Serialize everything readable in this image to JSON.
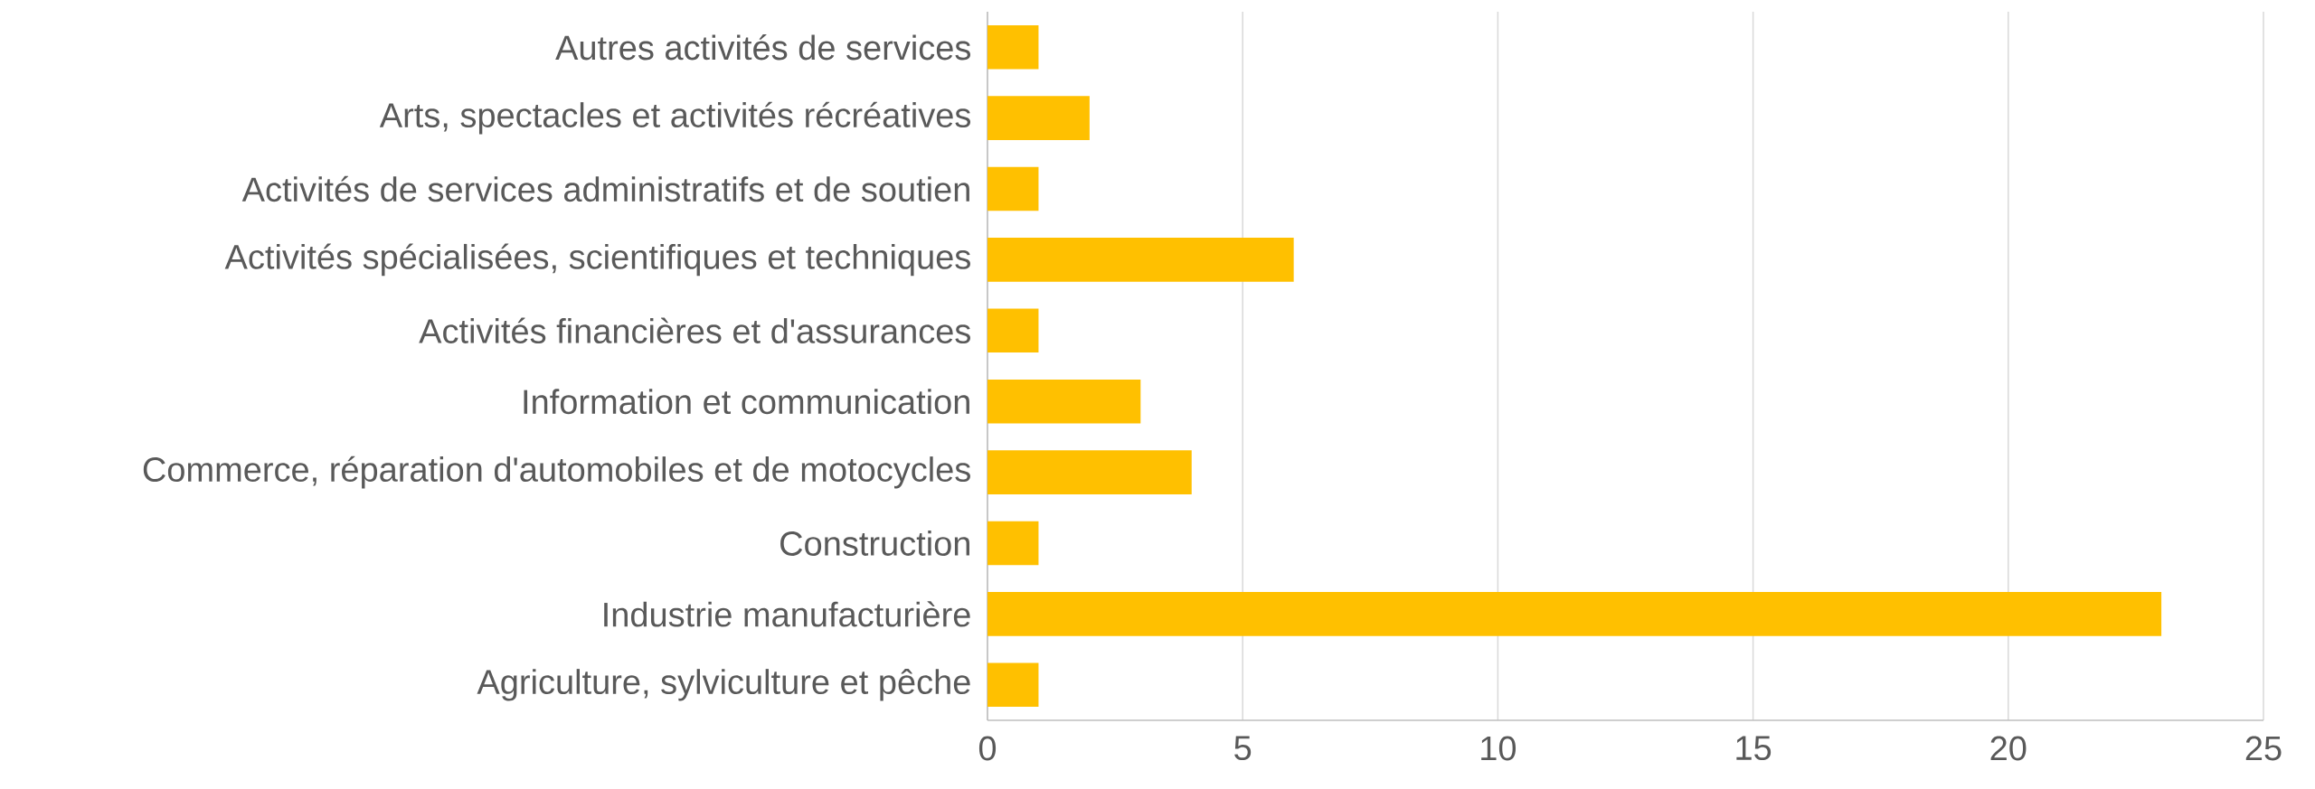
{
  "chart_data": {
    "type": "bar",
    "orientation": "horizontal",
    "categories": [
      "Autres activités de services",
      "Arts, spectacles et activités récréatives",
      "Activités de services administratifs et de soutien",
      "Activités spécialisées, scientifiques et techniques",
      "Activités financières et d'assurances",
      "Information et communication",
      "Commerce, réparation d'automobiles et de motocycles",
      "Construction",
      "Industrie manufacturière",
      "Agriculture, sylviculture et pêche"
    ],
    "values": [
      1,
      2,
      1,
      6,
      1,
      3,
      4,
      1,
      23,
      1
    ],
    "color": "#ffc000",
    "xlim": [
      0,
      25
    ],
    "xticks": [
      0,
      5,
      10,
      15,
      20,
      25
    ],
    "grid": "x"
  }
}
